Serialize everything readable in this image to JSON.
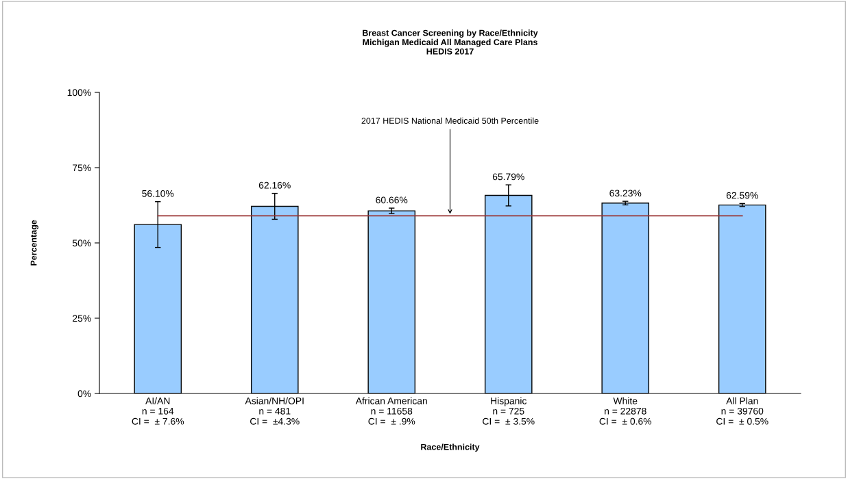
{
  "chart_data": {
    "type": "bar",
    "title": "Breast Cancer Screening by Race/Ethnicity\nMichigan Medicaid All Managed Care Plans\nHEDIS 2017",
    "xlabel": "Race/Ethnicity",
    "ylabel": "Percentage",
    "categories": [
      "AI/AN\nn = 164\nCI =  ± 7.6%",
      "Asian/NH/OPI\nn = 481\nCI =  ±4.3%",
      "African American\nn = 11658\nCI =  ± .9%",
      "Hispanic\nn = 725\nCI =  ± 3.5%",
      "White\nn = 22878\nCI =  ± 0.6%",
      "All Plan\nn = 39760\nCI =  ± 0.5%"
    ],
    "values": [
      56.1,
      62.16,
      60.66,
      65.79,
      63.23,
      62.59
    ],
    "value_labels": [
      "56.10%",
      "62.16%",
      "60.66%",
      "65.79%",
      "63.23%",
      "62.59%"
    ],
    "errors": [
      7.6,
      4.3,
      0.9,
      3.5,
      0.6,
      0.5
    ],
    "color": "#99ccff",
    "ylim": [
      0,
      100
    ],
    "yticks": [
      {
        "value": 0,
        "label": "0%"
      },
      {
        "value": 25,
        "label": "25%"
      },
      {
        "value": 50,
        "label": "50%"
      },
      {
        "value": 75,
        "label": "75%"
      },
      {
        "value": 100,
        "label": "100%"
      }
    ],
    "ref_lines": [
      {
        "axis": "y",
        "value": 59.0,
        "label": "2017 HEDIS National Medicaid 50th Percentile",
        "color": "#993333"
      }
    ],
    "grid": false,
    "legend": false
  }
}
